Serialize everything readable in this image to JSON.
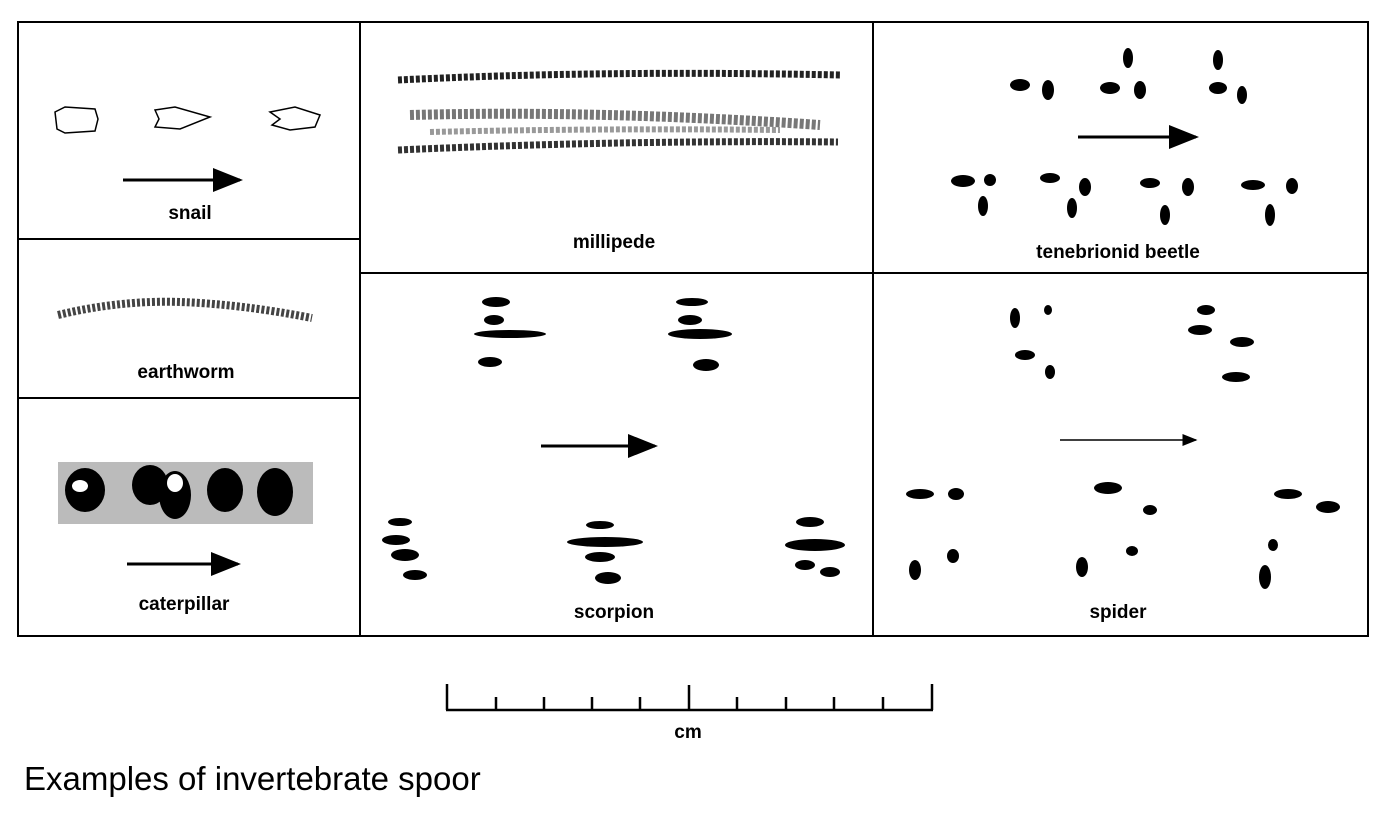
{
  "panels": {
    "snail": "snail",
    "earthworm": "earthworm",
    "caterpillar": "caterpillar",
    "millipede": "millipede",
    "scorpion": "scorpion",
    "tenebrionid_beetle": "tenebrionid beetle",
    "spider": "spider"
  },
  "scale": {
    "unit": "cm",
    "ticks": 11
  },
  "caption": "Examples of invertebrate spoor",
  "colors": {
    "ink": "#000000",
    "background": "#ffffff"
  }
}
